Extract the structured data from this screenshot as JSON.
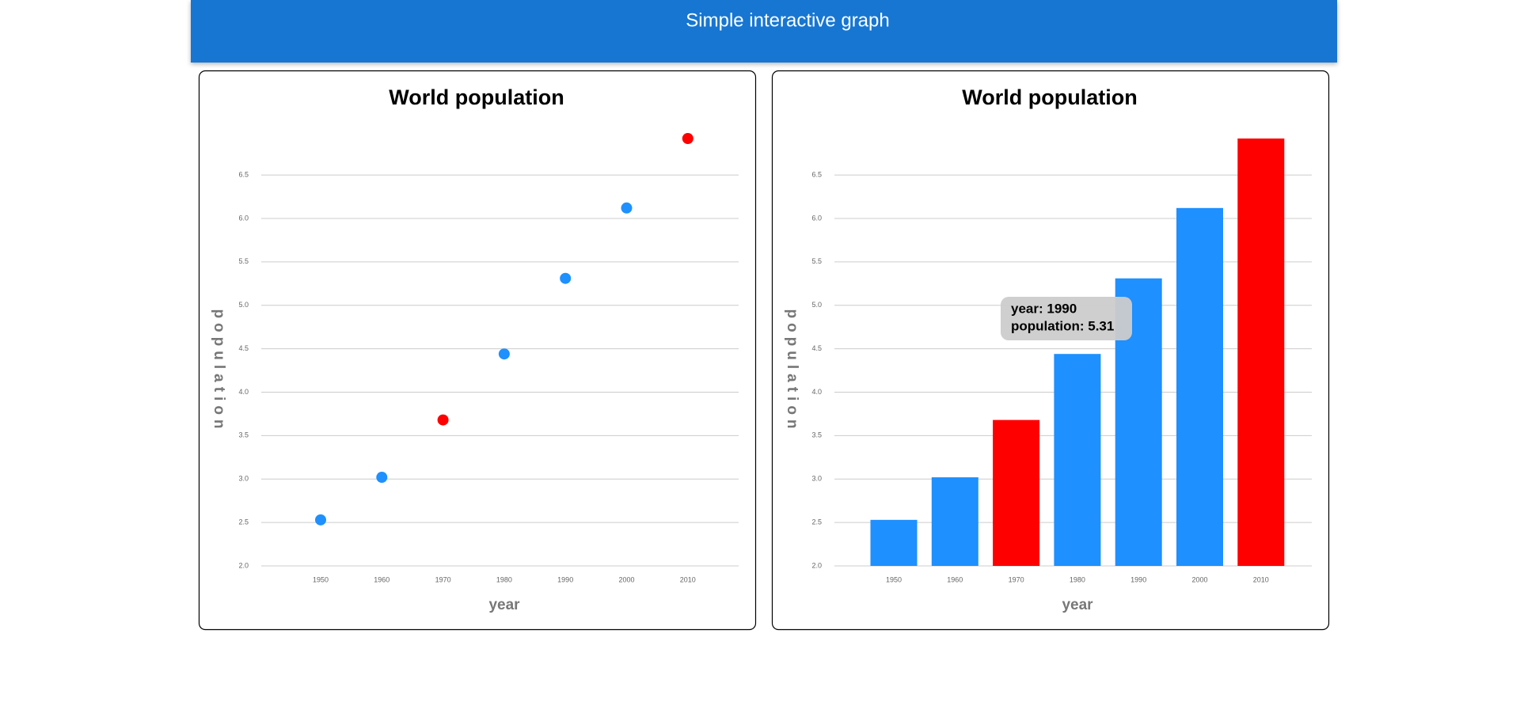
{
  "header": {
    "title": "Simple interactive graph"
  },
  "chart_data": [
    {
      "type": "scatter",
      "title": "World population",
      "x_label": "year",
      "y_label": "population",
      "categories": [
        "1950",
        "1960",
        "1970",
        "1980",
        "1990",
        "2000",
        "2010"
      ],
      "values": [
        2.53,
        3.02,
        3.68,
        4.44,
        5.31,
        6.12,
        6.92
      ],
      "colors": [
        "#1e90ff",
        "#1e90ff",
        "#ff0000",
        "#1e90ff",
        "#1e90ff",
        "#1e90ff",
        "#ff0000"
      ],
      "ylim": [
        2.0,
        6.92
      ],
      "yticks": [
        {
          "value": 2,
          "label": "2.0"
        },
        2.5,
        {
          "value": 3,
          "label": "3.0"
        },
        3.5,
        {
          "value": 4,
          "label": "4.0"
        },
        4.5,
        {
          "value": 5,
          "label": "5.0"
        },
        5.5,
        {
          "value": 6,
          "label": "6.0"
        },
        6.5
      ],
      "grid": true
    },
    {
      "type": "bar",
      "title": "World population",
      "x_label": "year",
      "y_label": "population",
      "categories": [
        "1950",
        "1960",
        "1970",
        "1980",
        "1990",
        "2000",
        "2010"
      ],
      "values": [
        2.53,
        3.02,
        3.68,
        4.44,
        5.31,
        6.12,
        6.92
      ],
      "colors": [
        "#1e90ff",
        "#1e90ff",
        "#ff0000",
        "#1e90ff",
        "#1e90ff",
        "#1e90ff",
        "#ff0000"
      ],
      "ylim": [
        2.0,
        6.92
      ],
      "yticks": [
        {
          "value": 2,
          "label": "2.0"
        },
        2.5,
        {
          "value": 3,
          "label": "3.0"
        },
        3.5,
        {
          "value": 4,
          "label": "4.0"
        },
        4.5,
        {
          "value": 5,
          "label": "5.0"
        },
        5.5,
        {
          "value": 6,
          "label": "6.0"
        },
        6.5
      ],
      "grid": true,
      "tooltip": {
        "year": "year: 1990",
        "population": "population: 5.31"
      }
    }
  ]
}
